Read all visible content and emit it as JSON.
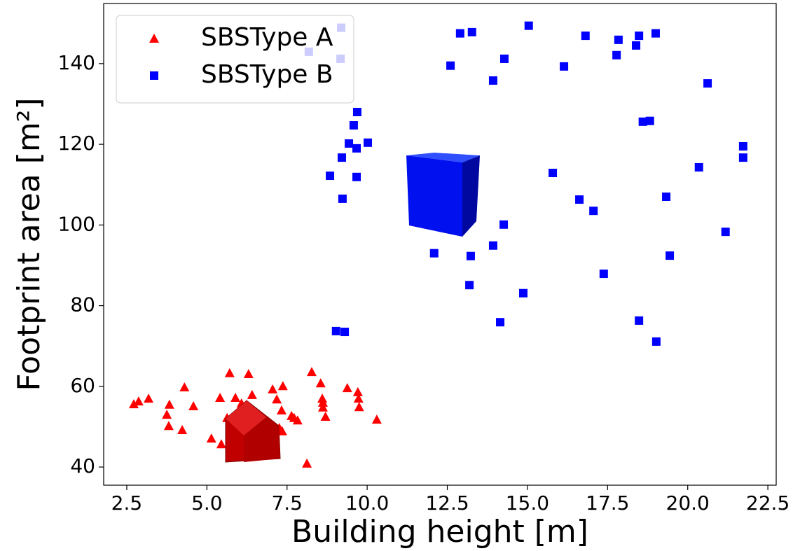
{
  "chart_data": {
    "type": "scatter",
    "xlabel": "Building height [m]",
    "ylabel": "Footprint area [m²]",
    "xlim": [
      1.78,
      22.76
    ],
    "ylim": [
      35.5,
      154.9
    ],
    "xticks": [
      2.5,
      {
        "value": 5,
        "label": "5.0"
      },
      7.5,
      {
        "value": 10,
        "label": "10.0"
      },
      12.5,
      {
        "value": 15,
        "label": "15.0"
      },
      17.5,
      {
        "value": 20,
        "label": "20.0"
      },
      22.5
    ],
    "yticks": [
      40,
      60,
      80,
      100,
      120,
      140
    ],
    "grid": false,
    "legend_position": "upper left",
    "series": [
      {
        "name": "SBSType A",
        "color": "#ff0000",
        "marker": "triangle",
        "x": [
          2.72,
          2.87,
          3.18,
          3.83,
          3.75,
          3.81,
          4.23,
          4.3,
          4.58,
          5.14,
          5.41,
          5.45,
          5.71,
          5.63,
          5.89,
          6.08,
          6.3,
          6.41,
          7.05,
          7.18,
          7.37,
          7.33,
          7.26,
          7.35,
          7.64,
          7.72,
          7.83,
          8.27,
          8.55,
          8.6,
          8.62,
          8.62,
          8.7,
          8.12,
          9.38,
          9.71,
          9.73,
          9.75,
          10.3
        ],
        "y": [
          55.6,
          56.3,
          57.0,
          55.5,
          53.0,
          50.2,
          49.2,
          59.8,
          55.1,
          47.1,
          57.2,
          45.7,
          63.3,
          52.2,
          57.2,
          55.8,
          63.1,
          57.9,
          59.3,
          56.8,
          60.1,
          54.1,
          49.7,
          48.9,
          52.7,
          52.2,
          51.6,
          63.6,
          60.8,
          57.0,
          56.0,
          54.8,
          52.5,
          40.9,
          59.6,
          58.6,
          57.0,
          54.9,
          51.8
        ]
      },
      {
        "name": "SBSType B",
        "color": "#0000ff",
        "marker": "square",
        "x": [
          8.18,
          9.19,
          9.17,
          12.6,
          12.9,
          13.27,
          13.93,
          14.28,
          15.04,
          16.14,
          16.81,
          17.78,
          17.84,
          18.39,
          18.48,
          19.0,
          20.62,
          18.6,
          18.82,
          21.73,
          21.73,
          20.35,
          19.33,
          15.79,
          16.62,
          17.06,
          14.26,
          21.18,
          19.44,
          12.09,
          13.23,
          13.93,
          17.38,
          13.19,
          14.87,
          14.15,
          18.48,
          19.02,
          9.03,
          9.3,
          9.69,
          9.58,
          9.43,
          10.02,
          9.67,
          9.21,
          8.84,
          9.67,
          9.23
        ],
        "y": [
          142.95,
          148.9,
          141.2,
          139.5,
          147.5,
          147.8,
          135.8,
          141.2,
          149.4,
          139.3,
          146.9,
          142.1,
          145.9,
          144.5,
          146.9,
          147.5,
          135.1,
          125.6,
          125.8,
          119.5,
          116.7,
          114.3,
          107.0,
          112.9,
          106.3,
          103.5,
          100.1,
          98.3,
          92.4,
          93.0,
          92.3,
          94.9,
          87.9,
          85.1,
          83.1,
          75.9,
          76.3,
          71.1,
          73.7,
          73.5,
          128.0,
          124.7,
          120.2,
          120.4,
          119.0,
          116.7,
          112.2,
          111.9,
          106.5
        ]
      }
    ]
  }
}
